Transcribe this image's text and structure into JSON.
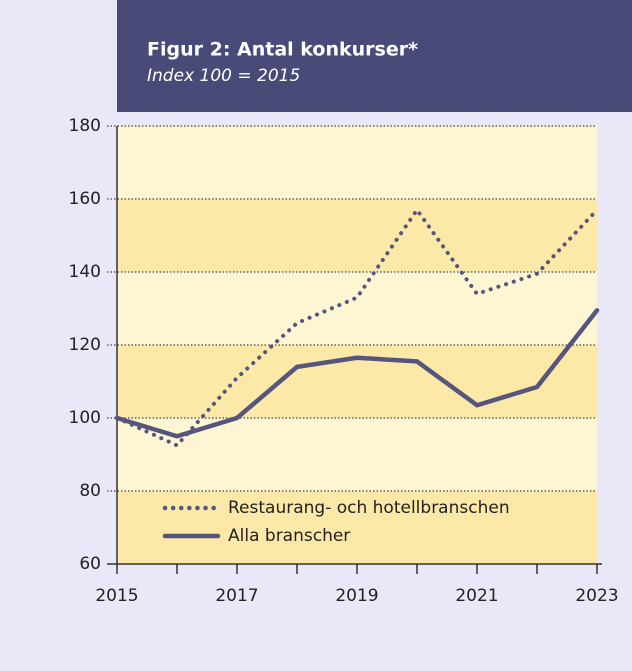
{
  "chart_data": {
    "type": "line",
    "title": "Figur 2: Antal konkurser*",
    "subtitle": "Index 100 = 2015",
    "x": [
      2015,
      2016,
      2017,
      2018,
      2019,
      2020,
      2021,
      2022,
      2023
    ],
    "series": [
      {
        "name": "Restaurang- och hotellbranschen",
        "color": "#56557e",
        "dash": "dotted",
        "values": [
          100,
          92.5,
          111,
          126,
          133,
          157,
          134,
          139.5,
          157
        ]
      },
      {
        "name": "Alla branscher",
        "color": "#56557e",
        "dash": "solid",
        "values": [
          100,
          95,
          100,
          114,
          116.5,
          115.5,
          103.5,
          108.5,
          129.5
        ]
      }
    ],
    "xlim": [
      2015,
      2023
    ],
    "xticks": [
      2015,
      2017,
      2019,
      2021,
      2023
    ],
    "xminorticks": [
      2016,
      2018,
      2020,
      2022
    ],
    "ylim": [
      60,
      180
    ],
    "yticks": [
      60,
      80,
      100,
      120,
      140,
      160,
      180
    ],
    "grid": true,
    "legend": "lower left"
  }
}
